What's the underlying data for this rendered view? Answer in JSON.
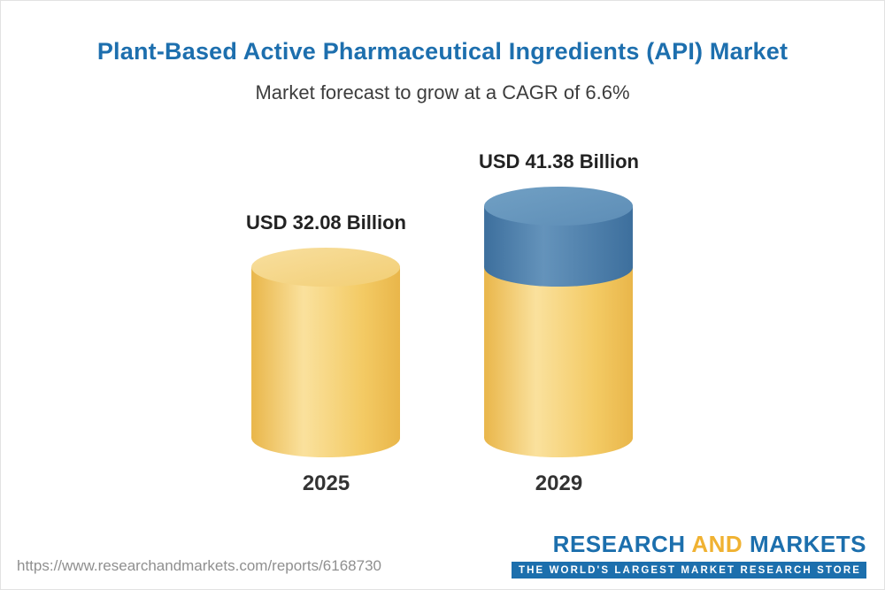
{
  "header": {
    "title": "Plant-Based Active Pharmaceutical Ingredients (API) Market",
    "subtitle": "Market forecast to grow at a CAGR of 6.6%"
  },
  "chart_data": {
    "type": "bar",
    "variant": "3d-cylinder",
    "title": "Plant-Based Active Pharmaceutical Ingredients (API) Market",
    "subtitle": "Market forecast to grow at a CAGR of 6.6%",
    "categories": [
      "2025",
      "2029"
    ],
    "values": [
      32.08,
      41.38
    ],
    "value_labels": [
      "USD 32.08 Billion",
      "USD 41.38 Billion"
    ],
    "unit": "USD Billion",
    "cagr_percent": 6.6,
    "base_value": 32.08,
    "growth_highlight": {
      "bar": "2029",
      "base": 32.08,
      "delta": 9.3
    },
    "xlabel": "",
    "ylabel": "",
    "ylim": [
      0,
      45
    ],
    "gridlines": false,
    "legend": false,
    "colors": {
      "base_dark": "#e9b64a",
      "base_light": "#fae19d",
      "base_fill": "#f3ca64",
      "base_top": "#f2ce74",
      "base_top_light": "#f8df9f",
      "growth_dark": "#3d6f9d",
      "growth_light": "#6493bb",
      "growth_fill": "#4d7fa9",
      "growth_top": "#5d8db6",
      "growth_top_light": "#71a0c4"
    }
  },
  "footer": {
    "url": "https://www.researchandmarkets.com/reports/6168730",
    "logo": {
      "research": "RESEARCH",
      "and": "AND",
      "markets": "MARKETS",
      "tagline": "THE WORLD'S LARGEST MARKET RESEARCH STORE"
    }
  }
}
